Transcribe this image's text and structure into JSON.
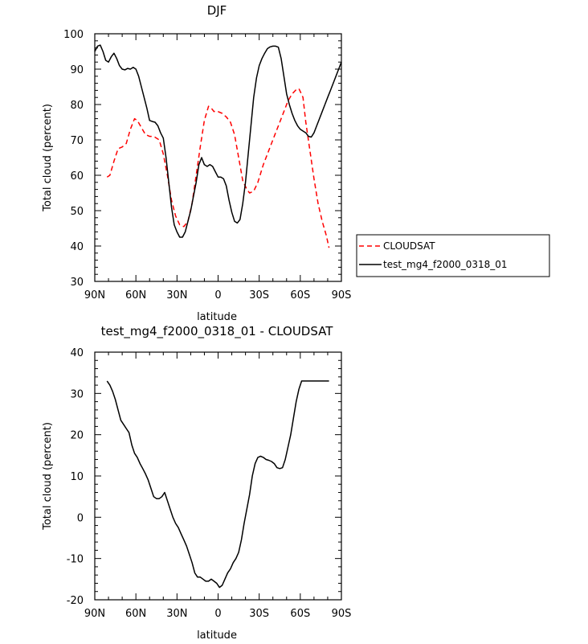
{
  "chart_data": [
    {
      "type": "line",
      "title": "DJF",
      "xlabel": "latitude",
      "ylabel": "Total cloud (percent)",
      "xlim": [
        90,
        -90
      ],
      "ylim": [
        30,
        100
      ],
      "x_tick_labels": [
        "90N",
        "60N",
        "30N",
        "0",
        "30S",
        "60S",
        "90S"
      ],
      "y_tick_labels": [
        "30",
        "40",
        "50",
        "60",
        "70",
        "80",
        "90",
        "100"
      ],
      "grid": false,
      "legend_position": "right-lower",
      "series": [
        {
          "name": "CLOUDSAT",
          "color": "#ff0000",
          "style": "dashed",
          "x": [
            81,
            79,
            76,
            73,
            70,
            67,
            64,
            61,
            59,
            56,
            53,
            50,
            47,
            43,
            40,
            37,
            34,
            31,
            28,
            25,
            22,
            19,
            16,
            13,
            10,
            7,
            5,
            3,
            2,
            0,
            -3,
            -6,
            -9,
            -12,
            -15,
            -18,
            -21,
            -23,
            -26,
            -29,
            -31,
            -33,
            -36,
            -39,
            -42,
            -45,
            -48,
            -51,
            -54,
            -57,
            -59,
            -62,
            -64,
            -67,
            -70,
            -73,
            -76,
            -79,
            -81
          ],
          "y": [
            59.5,
            60.0,
            64.0,
            67.5,
            68.0,
            69.0,
            73.0,
            76.0,
            75.5,
            73.5,
            71.5,
            71.0,
            71.0,
            70.0,
            66.0,
            60.0,
            53.0,
            48.5,
            46.0,
            45.5,
            47.0,
            52.0,
            60.0,
            68.0,
            75.5,
            79.5,
            79.0,
            78.0,
            78.2,
            78.0,
            77.5,
            76.5,
            75.0,
            71.5,
            65.0,
            58.5,
            56.0,
            55.0,
            55.5,
            58.0,
            60.5,
            63.0,
            66.0,
            69.0,
            72.0,
            75.0,
            78.0,
            81.0,
            83.0,
            84.2,
            84.5,
            82.0,
            75.0,
            67.0,
            59.0,
            52.0,
            47.0,
            43.0,
            39.5
          ]
        },
        {
          "name": "test_mg4_f2000_0318_01",
          "color": "#000000",
          "style": "solid",
          "x": [
            90,
            88,
            86,
            84,
            82,
            80,
            78,
            76,
            74,
            72,
            70,
            68,
            66,
            64,
            62,
            60,
            58,
            56,
            54,
            52,
            50,
            48,
            46,
            44,
            42,
            40,
            38,
            36,
            34,
            32,
            30,
            28,
            26,
            24,
            22,
            20,
            18,
            16,
            14,
            12,
            10,
            8,
            6,
            4,
            2,
            0,
            -2,
            -4,
            -6,
            -8,
            -10,
            -12,
            -14,
            -16,
            -18,
            -20,
            -22,
            -24,
            -26,
            -28,
            -30,
            -32,
            -34,
            -36,
            -38,
            -40,
            -42,
            -44,
            -46,
            -48,
            -50,
            -52,
            -54,
            -56,
            -58,
            -60,
            -62,
            -64,
            -66,
            -68,
            -70,
            -72,
            -74,
            -76,
            -78,
            -80,
            -82,
            -84,
            -86,
            -88,
            -90
          ],
          "y": [
            95.0,
            96.5,
            96.8,
            95.0,
            92.5,
            92.0,
            93.5,
            94.5,
            93.0,
            91.0,
            90.0,
            89.8,
            90.2,
            90.0,
            90.5,
            90.0,
            88.0,
            85.0,
            82.0,
            79.0,
            75.5,
            75.2,
            75.0,
            74.0,
            72.0,
            70.5,
            65.0,
            58.0,
            51.0,
            46.0,
            44.0,
            42.5,
            42.5,
            44.0,
            47.0,
            50.0,
            54.0,
            58.0,
            63.0,
            65.0,
            63.0,
            62.5,
            63.0,
            62.5,
            61.0,
            59.5,
            59.5,
            59.0,
            57.0,
            53.0,
            49.5,
            47.0,
            46.5,
            47.5,
            52.0,
            58.0,
            66.0,
            74.0,
            82.0,
            87.5,
            91.0,
            93.0,
            94.5,
            95.8,
            96.3,
            96.5,
            96.5,
            96.2,
            93.0,
            88.0,
            83.0,
            80.0,
            77.5,
            75.5,
            74.0,
            73.0,
            72.5,
            72.0,
            71.0,
            70.8,
            72.0,
            74.0,
            76.0,
            78.0,
            80.0,
            82.0,
            84.0,
            86.0,
            88.0,
            90.0,
            92.0
          ]
        }
      ]
    },
    {
      "type": "line",
      "title": "test_mg4_f2000_0318_01 - CLOUDSAT",
      "xlabel": "latitude",
      "ylabel": "Total cloud (percent)",
      "xlim": [
        90,
        -90
      ],
      "ylim": [
        -20,
        40
      ],
      "x_tick_labels": [
        "90N",
        "60N",
        "30N",
        "0",
        "30S",
        "60S",
        "90S"
      ],
      "y_tick_labels": [
        "-20",
        "-10",
        "0",
        "10",
        "20",
        "30",
        "40"
      ],
      "grid": false,
      "series": [
        {
          "color": "#000000",
          "style": "solid",
          "x": [
            81,
            79,
            77,
            75,
            73,
            71,
            69,
            67,
            65,
            63,
            61,
            59,
            57,
            55,
            53,
            51,
            49,
            47,
            45,
            43,
            41,
            39,
            37,
            35,
            33,
            31,
            29,
            27,
            25,
            23,
            21,
            19,
            17,
            15,
            13,
            11,
            9,
            7,
            5,
            3,
            1,
            -1,
            -3,
            -5,
            -7,
            -9,
            -11,
            -13,
            -15,
            -17,
            -19,
            -21,
            -23,
            -25,
            -27,
            -29,
            -31,
            -33,
            -35,
            -37,
            -39,
            -41,
            -43,
            -45,
            -47,
            -49,
            -51,
            -53,
            -55,
            -57,
            -59,
            -61,
            -63,
            -65,
            -67,
            -69,
            -71,
            -73,
            -75,
            -77,
            -79,
            -81
          ],
          "y": [
            33.0,
            32.0,
            30.5,
            28.5,
            26.0,
            23.5,
            22.5,
            21.5,
            20.5,
            17.5,
            15.5,
            14.5,
            13.0,
            11.8,
            10.5,
            9.0,
            7.0,
            5.0,
            4.5,
            4.5,
            5.0,
            6.0,
            4.0,
            2.0,
            0.0,
            -1.5,
            -2.5,
            -4.0,
            -5.5,
            -7.0,
            -9.0,
            -11.0,
            -13.5,
            -14.5,
            -14.5,
            -15.0,
            -15.5,
            -15.5,
            -15.0,
            -15.5,
            -16.0,
            -17.0,
            -16.5,
            -15.0,
            -13.5,
            -12.5,
            -11.0,
            -10.0,
            -8.5,
            -5.5,
            -1.5,
            2.0,
            5.5,
            10.0,
            13.0,
            14.5,
            14.8,
            14.5,
            14.0,
            13.8,
            13.5,
            13.0,
            12.0,
            11.8,
            12.0,
            14.0,
            17.0,
            20.0,
            24.0,
            28.0,
            31.0,
            33.0,
            33.0,
            33.0,
            33.0,
            33.0,
            33.0,
            33.0,
            33.0,
            33.0,
            33.0,
            33.0
          ]
        }
      ]
    }
  ]
}
